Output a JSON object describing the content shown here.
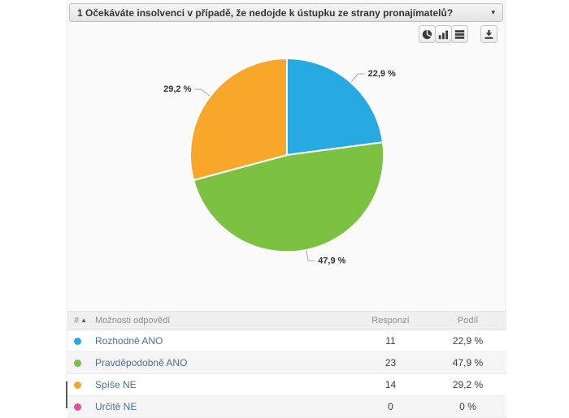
{
  "question_selector": {
    "label": "1 Očekáváte insolvenci v případě, že nedojde k ústupku ze strany pronajímatelů?",
    "caret": "▾"
  },
  "toolbar": {
    "views": [
      "pie-chart",
      "bar-chart",
      "list-view"
    ],
    "download": "download"
  },
  "chart_data": {
    "type": "pie",
    "title": "",
    "categories": [
      "Rozhodně ANO",
      "Pravděpodobně ANO",
      "Spíše NE",
      "Určitě NE"
    ],
    "values_percent": [
      22.9,
      47.9,
      29.2,
      0
    ],
    "responses": [
      11,
      23,
      14,
      0
    ],
    "percent_labels": [
      "22,9 %",
      "47,9 %",
      "29,2 %",
      "0 %"
    ],
    "colors": [
      "#27a9e1",
      "#7cc142",
      "#f9a72b",
      "#e84d9b"
    ],
    "start_angle_deg": 0,
    "direction": "clockwise",
    "legend_position": "none",
    "data_labels": "outside-with-connectors"
  },
  "table": {
    "sort_icon": "▲",
    "columns": {
      "num": "#",
      "options": "Možnosti odpovědí",
      "responses": "Responzí",
      "share": "Podíl"
    },
    "rows": [
      {
        "label": "Rozhodně ANO",
        "responses": "11",
        "share": "22,9 %",
        "color": "#27a9e1"
      },
      {
        "label": "Pravděpodobně ANO",
        "responses": "23",
        "share": "47,9 %",
        "color": "#7cc142"
      },
      {
        "label": "Spíše NE",
        "responses": "14",
        "share": "29,2 %",
        "color": "#f9a72b"
      },
      {
        "label": "Určitě NE",
        "responses": "0",
        "share": "0 %",
        "color": "#e84d9b"
      }
    ]
  }
}
